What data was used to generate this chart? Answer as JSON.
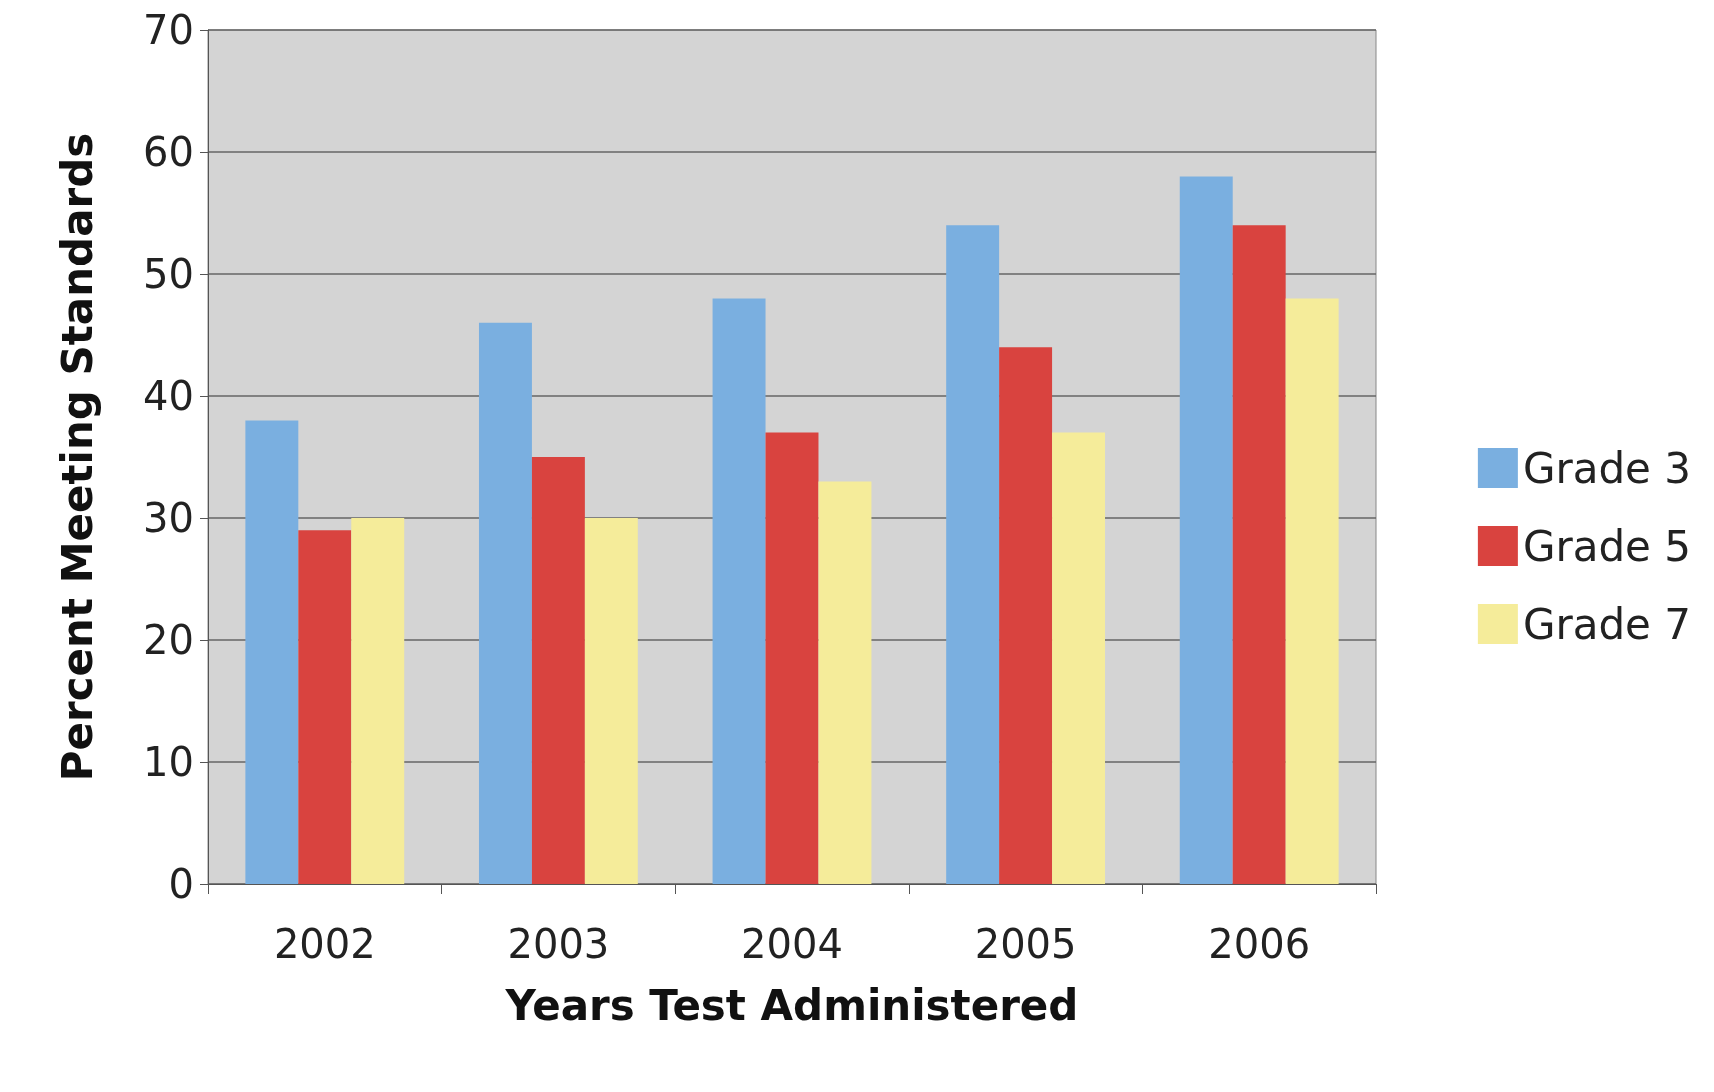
{
  "chart_data": {
    "type": "bar",
    "xlabel": "Years Test Administered",
    "ylabel": "Percent Meeting Standards",
    "categories": [
      "2002",
      "2003",
      "2004",
      "2005",
      "2006"
    ],
    "series": [
      {
        "name": "Grade 3",
        "color": "#7aafe0",
        "values": [
          38,
          46,
          48,
          54,
          58
        ]
      },
      {
        "name": "Grade 5",
        "color": "#d9433f",
        "values": [
          29,
          35,
          37,
          44,
          54
        ]
      },
      {
        "name": "Grade 7",
        "color": "#f5ec9a",
        "values": [
          30,
          30,
          33,
          37,
          48
        ]
      }
    ],
    "ylim": [
      0,
      70
    ],
    "yticks": [
      0,
      10,
      20,
      30,
      40,
      50,
      60,
      70
    ],
    "grid": "y",
    "legend": "right"
  }
}
